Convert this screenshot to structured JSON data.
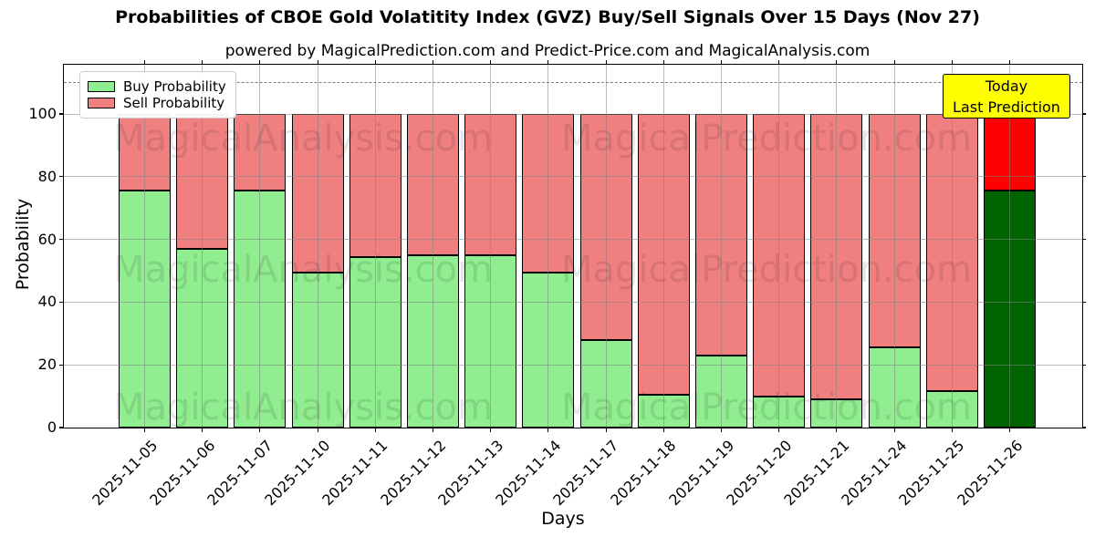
{
  "title": "Probabilities of CBOE Gold Volatitity Index (GVZ) Buy/Sell Signals Over 15 Days (Nov 27)",
  "subtitle": "powered by MagicalPrediction.com and Predict-Price.com and MagicalAnalysis.com",
  "legend": {
    "buy_label": "Buy Probability",
    "sell_label": "Sell Probability"
  },
  "annotation": {
    "line1": "Today",
    "line2": "Last Prediction",
    "bg_color": "#ffff00"
  },
  "watermark": {
    "left_text": "MagicalAnalysis.com",
    "right_text": "MagicalPrediction.com"
  },
  "colors": {
    "buy": "#90ee90",
    "sell": "#f08080",
    "today_buy": "#006400",
    "today_sell": "#ff0000",
    "bar_edge": "#000000",
    "grid": "#b0b0b0",
    "dashed_line": "#7f7f7f"
  },
  "chart_data": {
    "type": "bar",
    "stacked": true,
    "title": "Probabilities of CBOE Gold Volatitity Index (GVZ) Buy/Sell Signals Over 15 Days (Nov 27)",
    "xlabel": "Days",
    "ylabel": "Probability",
    "ylim": [
      0,
      115.7
    ],
    "yticks": [
      0,
      20,
      40,
      60,
      80,
      100
    ],
    "grid": true,
    "legend_position": "upper left",
    "dashed_reference_line_y": 110,
    "today_index": 15,
    "categories": [
      "2025-11-05",
      "2025-11-06",
      "2025-11-07",
      "2025-11-10",
      "2025-11-11",
      "2025-11-12",
      "2025-11-13",
      "2025-11-14",
      "2025-11-17",
      "2025-11-18",
      "2025-11-19",
      "2025-11-20",
      "2025-11-21",
      "2025-11-24",
      "2025-11-25",
      "2025-11-26"
    ],
    "series": [
      {
        "name": "Buy Probability",
        "color": "#90ee90",
        "values": [
          75.5,
          57,
          75.5,
          49.5,
          54.5,
          55,
          55,
          49.5,
          28,
          10.5,
          23,
          10,
          9,
          25.5,
          11.5,
          75.5
        ]
      },
      {
        "name": "Sell Probability",
        "color": "#f08080",
        "values": [
          24.5,
          43,
          24.5,
          50.5,
          45.5,
          45,
          45,
          50.5,
          72,
          89.5,
          77,
          90,
          91,
          74.5,
          88.5,
          24.5
        ]
      }
    ]
  }
}
